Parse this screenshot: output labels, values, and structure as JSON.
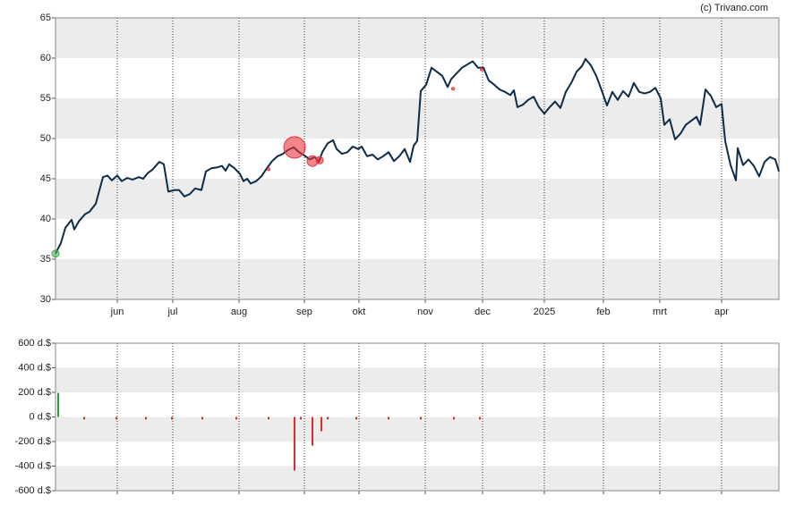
{
  "chart_data": [
    {
      "type": "line",
      "credit": "(c) Trivano.com",
      "color": "#0d2c48",
      "x": [
        0,
        6,
        11,
        18,
        21,
        26,
        33,
        38,
        45,
        53,
        58,
        63,
        69,
        74,
        80,
        86,
        93,
        98,
        103,
        108,
        112,
        116,
        121,
        126,
        133,
        138,
        144,
        150,
        156,
        163,
        168,
        174,
        180,
        186,
        190,
        194,
        200,
        206,
        210,
        214,
        218,
        224,
        230,
        236,
        242,
        248,
        254,
        260,
        266,
        272,
        278,
        284,
        290,
        294,
        298,
        304,
        310,
        314,
        320,
        326,
        332,
        338,
        342,
        348,
        354,
        360,
        366,
        372,
        378,
        384,
        390,
        396,
        400,
        404,
        408,
        414,
        420,
        426,
        432,
        438,
        442,
        448,
        454,
        460,
        466,
        472,
        478,
        484,
        490,
        496,
        502,
        508,
        512,
        516,
        522,
        528,
        534,
        540,
        546,
        552,
        558,
        564,
        570,
        576,
        582,
        588,
        592,
        598,
        604,
        610,
        616,
        622,
        628,
        634,
        640,
        646,
        652,
        658,
        664,
        670,
        676,
        680,
        686,
        692,
        698,
        704,
        710,
        716,
        720,
        726,
        732,
        738,
        744,
        748,
        754,
        760,
        762,
        768,
        774,
        780,
        786,
        792,
        798,
        804,
        808
      ],
      "values": [
        35.7,
        37.0,
        38.9,
        39.9,
        38.7,
        39.7,
        40.6,
        40.9,
        41.9,
        45.2,
        45.4,
        44.8,
        45.4,
        44.7,
        45.1,
        44.9,
        45.2,
        45.0,
        45.7,
        46.1,
        46.6,
        47.1,
        46.8,
        43.4,
        43.6,
        43.6,
        42.8,
        43.1,
        43.8,
        43.6,
        45.9,
        46.3,
        46.4,
        46.6,
        46.0,
        46.8,
        46.3,
        45.6,
        44.7,
        45.0,
        44.4,
        44.7,
        45.3,
        46.3,
        47.2,
        47.8,
        48.1,
        48.6,
        48.9,
        48.3,
        47.9,
        47.4,
        47.7,
        47.1,
        48.3,
        49.4,
        49.8,
        48.7,
        48.1,
        48.3,
        49.0,
        48.7,
        49.0,
        47.8,
        48.0,
        47.4,
        47.8,
        48.3,
        47.2,
        47.8,
        48.7,
        47.1,
        49.1,
        49.7,
        55.9,
        56.7,
        58.8,
        58.3,
        57.8,
        56.4,
        57.4,
        58.1,
        58.8,
        59.2,
        59.6,
        58.8,
        58.8,
        57.2,
        56.7,
        56.1,
        55.8,
        55.4,
        56.0,
        53.9,
        54.2,
        54.8,
        55.2,
        53.9,
        53.1,
        53.9,
        54.6,
        53.8,
        55.8,
        56.9,
        58.3,
        59.0,
        59.9,
        59.1,
        57.8,
        56.0,
        54.1,
        55.8,
        54.8,
        55.9,
        55.2,
        56.9,
        55.8,
        55.6,
        55.8,
        56.3,
        55.0,
        51.7,
        52.4,
        49.9,
        50.6,
        51.7,
        52.2,
        52.7,
        51.7,
        56.1,
        55.3,
        53.9,
        54.3,
        49.7,
        46.7,
        44.8,
        48.8,
        46.7,
        47.4,
        46.6,
        45.3,
        47.1,
        47.7,
        47.4,
        45.9
      ],
      "markers": {
        "x": [
          0,
          267,
          287,
          295,
          238,
          444,
          476
        ],
        "y": [
          35.7,
          48.9,
          47.2,
          47.3,
          46.2,
          56.2,
          58.6
        ],
        "sizes": [
          4,
          12,
          6,
          4,
          1.5,
          1.5,
          1.5
        ],
        "colors": [
          "#4caf50",
          "#e8333a",
          "#e8333a",
          "#e8333a",
          "#e8333a",
          "#e8333a",
          "#e8333a"
        ]
      },
      "xlim": [
        0,
        808
      ],
      "ylim": [
        30,
        65
      ],
      "yticks": [
        30,
        35,
        40,
        45,
        50,
        55,
        60,
        65
      ],
      "xticks": [
        {
          "value": 69,
          "label": "jun"
        },
        {
          "value": 131,
          "label": "jul"
        },
        {
          "value": 205,
          "label": "aug"
        },
        {
          "value": 278,
          "label": "sep"
        },
        {
          "value": 339,
          "label": "okt"
        },
        {
          "value": 413,
          "label": "nov"
        },
        {
          "value": 477,
          "label": "dec"
        },
        {
          "value": 546,
          "label": "2025"
        },
        {
          "value": 612,
          "label": "feb"
        },
        {
          "value": 675,
          "label": "mrt"
        },
        {
          "value": 744,
          "label": "apr"
        }
      ],
      "shade_alternate": true
    },
    {
      "type": "bar",
      "positive_color": "#2e9a3e",
      "negative_color": "#e02a30",
      "x": [
        3,
        32,
        68,
        101,
        130,
        164,
        202,
        238,
        267,
        274,
        287,
        297,
        304,
        336,
        372,
        408,
        445,
        474
      ],
      "values": [
        196,
        -20,
        -20,
        -20,
        -20,
        -20,
        -20,
        -20,
        -436,
        -20,
        -233,
        -116,
        -20,
        -20,
        -20,
        -20,
        -20,
        -20
      ],
      "xlim": [
        0,
        808
      ],
      "ylim": [
        -600,
        600
      ],
      "yticks": [
        {
          "value": -600,
          "label": "-600 d.$"
        },
        {
          "value": -400,
          "label": "-400 d.$"
        },
        {
          "value": -200,
          "label": "-200 d.$"
        },
        {
          "value": 0,
          "label": "0 d.$"
        },
        {
          "value": 200,
          "label": "200 d.$"
        },
        {
          "value": 400,
          "label": "400 d.$"
        },
        {
          "value": 600,
          "label": "600 d.$"
        }
      ],
      "shade_alternate": true
    }
  ]
}
